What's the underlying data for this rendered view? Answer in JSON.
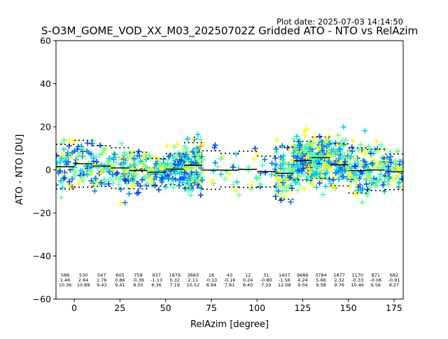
{
  "chart_data": {
    "type": "scatter",
    "plot_date": "Plot date: 2025-07-03 14:14:50",
    "title": "S-O3M_GOME_VOD_XX_M03_20250702Z Gridded ATO - NTO vs RelAzim",
    "xlabel": "RelAzim [degree]",
    "ylabel": "ATO - NTO [DU]",
    "xlim": [
      -10,
      180
    ],
    "ylim": [
      -60,
      60
    ],
    "xticks": [
      0,
      25,
      50,
      75,
      100,
      125,
      150,
      175
    ],
    "yticks": [
      -60,
      -40,
      -20,
      0,
      20,
      40,
      60
    ],
    "grid": false,
    "marker": "+",
    "colors": {
      "point_palette": [
        "#ffff00",
        "#7fff7f",
        "#4fffaf",
        "#00d0ff",
        "#0080ff",
        "#0040ff",
        "#ffa500",
        "#ff4000"
      ],
      "mean_line": "#000000",
      "std_line": "#000000"
    },
    "bins": [
      {
        "x": -5,
        "count": 586,
        "mean": 1.46,
        "std": 10.36
      },
      {
        "x": 5,
        "count": 530,
        "mean": 2.84,
        "std": 10.88
      },
      {
        "x": 15,
        "count": 547,
        "mean": 1.76,
        "std": 9.43
      },
      {
        "x": 25,
        "count": 605,
        "mean": 0.86,
        "std": 9.41
      },
      {
        "x": 35,
        "count": 759,
        "mean": -0.36,
        "std": 8.5
      },
      {
        "x": 45,
        "count": 937,
        "mean": -1.13,
        "std": 6.36
      },
      {
        "x": 55,
        "count": 1879,
        "mean": 0.32,
        "std": 7.19
      },
      {
        "x": 65,
        "count": 3683,
        "mean": 2.11,
        "std": 10.52
      },
      {
        "x": 75,
        "count": 18,
        "mean": -0.1,
        "std": 8.94
      },
      {
        "x": 85,
        "count": 43,
        "mean": -0.16,
        "std": 7.81
      },
      {
        "x": 95,
        "count": 12,
        "mean": 0.24,
        "std": 8.4
      },
      {
        "x": 105,
        "count": 31,
        "mean": -0.8,
        "std": 7.19
      },
      {
        "x": 115,
        "count": 1407,
        "mean": -1.56,
        "std": 12.08
      },
      {
        "x": 125,
        "count": 9686,
        "mean": 4.24,
        "std": 9.04
      },
      {
        "x": 135,
        "count": 3784,
        "mean": 5.66,
        "std": 9.58
      },
      {
        "x": 145,
        "count": 1877,
        "mean": 2.32,
        "std": 9.76
      },
      {
        "x": 155,
        "count": 1170,
        "mean": -0.33,
        "std": 10.46
      },
      {
        "x": 165,
        "count": 871,
        "mean": -0.06,
        "std": 9.56
      },
      {
        "x": 175,
        "count": 682,
        "mean": -0.91,
        "std": 8.27
      }
    ]
  }
}
